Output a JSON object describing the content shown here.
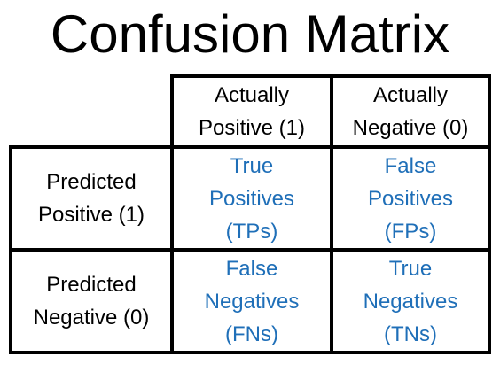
{
  "title": "Confusion Matrix",
  "columns": {
    "positive": "Actually\nPositive (1)",
    "negative": "Actually\nNegative (0)"
  },
  "rows": {
    "positive": "Predicted\nPositive (1)",
    "negative": "Predicted\nNegative (0)"
  },
  "cells": {
    "tp": "True\nPositives\n(TPs)",
    "fp": "False\nPositives\n(FPs)",
    "fn": "False\nNegatives\n(FNs)",
    "tn": "True\nNegatives\n(TNs)"
  },
  "colors": {
    "header_text": "#000000",
    "cell_text": "#1f6fb8",
    "border": "#000000"
  }
}
